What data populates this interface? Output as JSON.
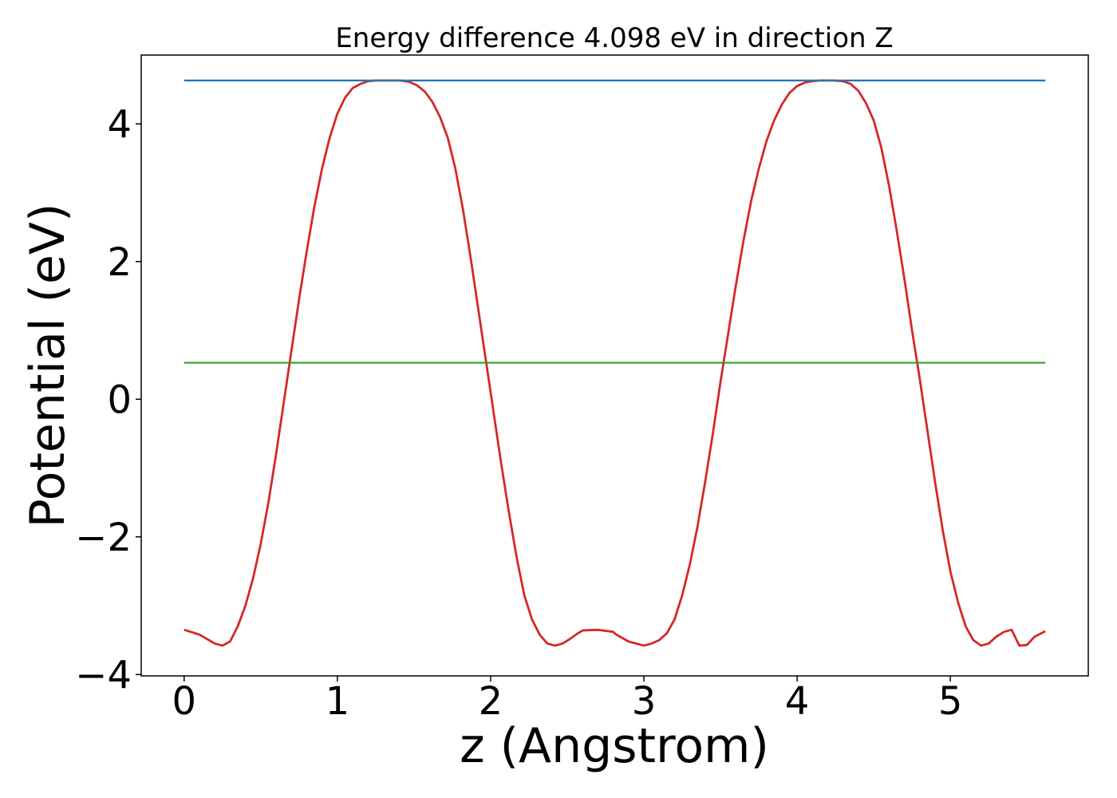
{
  "chart_data": {
    "type": "line",
    "title": "Energy difference 4.098 eV in direction Z",
    "xlabel": "z (Angstrom)",
    "ylabel": "Potential (eV)",
    "xlim": [
      -0.28,
      5.9
    ],
    "ylim": [
      -4.02,
      5.0
    ],
    "x_ticks": [
      0,
      1,
      2,
      3,
      4,
      5
    ],
    "x_tick_labels": [
      "0",
      "1",
      "2",
      "3",
      "4",
      "5"
    ],
    "y_ticks": [
      -4,
      -2,
      0,
      2,
      4
    ],
    "y_tick_labels": [
      "−4",
      "−2",
      "0",
      "2",
      "4"
    ],
    "grid": false,
    "legend": false,
    "series": [
      {
        "color": "#d62728",
        "x": [
          0.0,
          0.1,
          0.2,
          0.25,
          0.3,
          0.35,
          0.4,
          0.45,
          0.5,
          0.55,
          0.6,
          0.65,
          0.7,
          0.75,
          0.8,
          0.85,
          0.9,
          0.95,
          1.0,
          1.05,
          1.1,
          1.15,
          1.2,
          1.25,
          1.3,
          1.35,
          1.41,
          1.47,
          1.52,
          1.57,
          1.62,
          1.67,
          1.72,
          1.77,
          1.82,
          1.87,
          1.92,
          1.97,
          2.02,
          2.07,
          2.12,
          2.17,
          2.22,
          2.27,
          2.32,
          2.37,
          2.42,
          2.47,
          2.52,
          2.57,
          2.6,
          2.7,
          2.8,
          2.82,
          2.9,
          3.0,
          3.05,
          3.1,
          3.15,
          3.2,
          3.25,
          3.3,
          3.35,
          3.4,
          3.45,
          3.5,
          3.55,
          3.6,
          3.65,
          3.7,
          3.75,
          3.8,
          3.85,
          3.9,
          3.95,
          4.0,
          4.05,
          4.1,
          4.15,
          4.24,
          4.3,
          4.35,
          4.4,
          4.45,
          4.5,
          4.55,
          4.6,
          4.65,
          4.7,
          4.75,
          4.8,
          4.85,
          4.9,
          4.95,
          5.0,
          5.05,
          5.1,
          5.15,
          5.2,
          5.25,
          5.3,
          5.35,
          5.4,
          5.45,
          5.5,
          5.55,
          5.62
        ],
        "y": [
          -3.35,
          -3.42,
          -3.55,
          -3.58,
          -3.52,
          -3.3,
          -3.0,
          -2.6,
          -2.1,
          -1.5,
          -0.8,
          -0.05,
          0.7,
          1.45,
          2.15,
          2.8,
          3.35,
          3.8,
          4.15,
          4.38,
          4.52,
          4.58,
          4.62,
          4.63,
          4.63,
          4.63,
          4.63,
          4.61,
          4.56,
          4.47,
          4.32,
          4.1,
          3.8,
          3.35,
          2.75,
          2.05,
          1.3,
          0.55,
          -0.2,
          -0.95,
          -1.65,
          -2.3,
          -2.85,
          -3.2,
          -3.42,
          -3.55,
          -3.58,
          -3.55,
          -3.48,
          -3.4,
          -3.36,
          -3.35,
          -3.38,
          -3.42,
          -3.52,
          -3.58,
          -3.55,
          -3.5,
          -3.4,
          -3.2,
          -2.85,
          -2.4,
          -1.85,
          -1.2,
          -0.5,
          0.25,
          0.95,
          1.65,
          2.3,
          2.88,
          3.35,
          3.75,
          4.05,
          4.28,
          4.45,
          4.55,
          4.6,
          4.62,
          4.63,
          4.63,
          4.62,
          4.58,
          4.48,
          4.3,
          4.05,
          3.65,
          3.1,
          2.45,
          1.75,
          1.0,
          0.3,
          -0.45,
          -1.2,
          -1.9,
          -2.5,
          -2.95,
          -3.3,
          -3.5,
          -3.58,
          -3.55,
          -3.45,
          -3.38,
          -3.35,
          -3.58,
          -3.57,
          -3.45,
          -3.37
        ]
      },
      {
        "color": "#1f77b4",
        "x": [
          0.0,
          5.62
        ],
        "y": [
          4.63,
          4.63
        ]
      },
      {
        "color": "#2ca02c",
        "x": [
          0.0,
          5.62
        ],
        "y": [
          0.53,
          0.53
        ]
      }
    ]
  }
}
